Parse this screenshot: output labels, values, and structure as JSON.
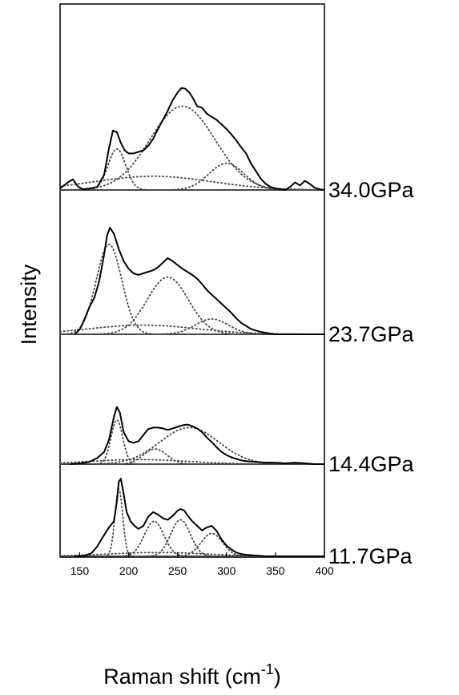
{
  "chart_data": {
    "type": "line",
    "style": "stacked Raman spectra (solid) with dotted Gaussian/Lorentzian fit components",
    "xlabel": "Raman shift (cm",
    "xlabel_sup": "-1",
    "xlabel_close": ")",
    "ylabel": "Intensity",
    "xlim": [
      130,
      400
    ],
    "x_ticks": [
      150,
      200,
      250,
      300,
      350,
      400
    ],
    "grid": false,
    "panels": [
      {
        "label": "34.0GPa",
        "spectrum": [
          [
            130,
            2
          ],
          [
            138,
            10
          ],
          [
            143,
            14
          ],
          [
            148,
            5
          ],
          [
            153,
            1
          ],
          [
            160,
            2
          ],
          [
            168,
            4
          ],
          [
            175,
            20
          ],
          [
            180,
            55
          ],
          [
            184,
            78
          ],
          [
            188,
            76
          ],
          [
            192,
            62
          ],
          [
            196,
            52
          ],
          [
            200,
            48
          ],
          [
            205,
            48
          ],
          [
            210,
            50
          ],
          [
            215,
            52
          ],
          [
            220,
            58
          ],
          [
            225,
            67
          ],
          [
            230,
            80
          ],
          [
            235,
            92
          ],
          [
            240,
            104
          ],
          [
            245,
            118
          ],
          [
            250,
            128
          ],
          [
            254,
            134
          ],
          [
            258,
            133
          ],
          [
            262,
            128
          ],
          [
            266,
            120
          ],
          [
            270,
            110
          ],
          [
            275,
            108
          ],
          [
            280,
            100
          ],
          [
            285,
            96
          ],
          [
            290,
            92
          ],
          [
            295,
            86
          ],
          [
            300,
            80
          ],
          [
            305,
            73
          ],
          [
            310,
            65
          ],
          [
            315,
            56
          ],
          [
            320,
            48
          ],
          [
            325,
            35
          ],
          [
            330,
            25
          ],
          [
            335,
            15
          ],
          [
            340,
            8
          ],
          [
            345,
            4
          ],
          [
            350,
            2
          ],
          [
            355,
            1
          ],
          [
            360,
            0
          ],
          [
            365,
            4
          ],
          [
            370,
            10
          ],
          [
            375,
            6
          ],
          [
            380,
            12
          ],
          [
            385,
            8
          ],
          [
            390,
            3
          ],
          [
            395,
            1
          ],
          [
            400,
            0
          ]
        ],
        "components": [
          {
            "center": 188,
            "height": 54,
            "width": 9
          },
          {
            "center": 255,
            "height": 110,
            "width": 33
          },
          {
            "center": 300,
            "height": 35,
            "width": 18
          },
          {
            "center": 225,
            "height": 18,
            "width": 60
          }
        ]
      },
      {
        "label": "23.7GPa",
        "spectrum": [
          [
            145,
            0
          ],
          [
            150,
            6
          ],
          [
            155,
            20
          ],
          [
            160,
            36
          ],
          [
            165,
            48
          ],
          [
            170,
            70
          ],
          [
            175,
            105
          ],
          [
            178,
            130
          ],
          [
            181,
            140
          ],
          [
            185,
            132
          ],
          [
            190,
            112
          ],
          [
            195,
            96
          ],
          [
            200,
            86
          ],
          [
            205,
            80
          ],
          [
            210,
            78
          ],
          [
            215,
            80
          ],
          [
            220,
            82
          ],
          [
            225,
            84
          ],
          [
            230,
            88
          ],
          [
            235,
            94
          ],
          [
            240,
            100
          ],
          [
            245,
            96
          ],
          [
            250,
            91
          ],
          [
            255,
            86
          ],
          [
            260,
            82
          ],
          [
            265,
            78
          ],
          [
            270,
            73
          ],
          [
            275,
            66
          ],
          [
            280,
            58
          ],
          [
            285,
            52
          ],
          [
            290,
            46
          ],
          [
            295,
            40
          ],
          [
            300,
            34
          ],
          [
            305,
            28
          ],
          [
            310,
            21
          ],
          [
            315,
            15
          ],
          [
            320,
            11
          ],
          [
            325,
            7
          ],
          [
            330,
            5
          ],
          [
            335,
            3
          ],
          [
            340,
            2
          ],
          [
            345,
            1
          ],
          [
            350,
            0
          ],
          [
            400,
            0
          ]
        ],
        "components": [
          {
            "center": 180,
            "height": 118,
            "width": 13
          },
          {
            "center": 240,
            "height": 75,
            "width": 21
          },
          {
            "center": 285,
            "height": 20,
            "width": 17
          },
          {
            "center": 215,
            "height": 12,
            "width": 55
          }
        ]
      },
      {
        "label": "14.4GPa",
        "spectrum": [
          [
            140,
            0
          ],
          [
            150,
            1
          ],
          [
            160,
            3
          ],
          [
            168,
            8
          ],
          [
            175,
            16
          ],
          [
            180,
            32
          ],
          [
            185,
            62
          ],
          [
            188,
            75
          ],
          [
            191,
            68
          ],
          [
            195,
            42
          ],
          [
            200,
            30
          ],
          [
            205,
            28
          ],
          [
            210,
            30
          ],
          [
            215,
            38
          ],
          [
            220,
            46
          ],
          [
            225,
            48
          ],
          [
            230,
            48
          ],
          [
            235,
            47
          ],
          [
            240,
            45
          ],
          [
            245,
            47
          ],
          [
            250,
            49
          ],
          [
            255,
            51
          ],
          [
            260,
            52
          ],
          [
            265,
            50
          ],
          [
            270,
            47
          ],
          [
            275,
            42
          ],
          [
            280,
            35
          ],
          [
            285,
            29
          ],
          [
            290,
            22
          ],
          [
            295,
            16
          ],
          [
            300,
            12
          ],
          [
            305,
            9
          ],
          [
            310,
            7
          ],
          [
            315,
            5
          ],
          [
            320,
            4
          ],
          [
            330,
            3
          ],
          [
            340,
            2
          ],
          [
            350,
            2
          ],
          [
            360,
            1
          ],
          [
            370,
            2
          ],
          [
            380,
            1
          ],
          [
            390,
            0
          ],
          [
            400,
            0
          ]
        ],
        "components": [
          {
            "center": 188,
            "height": 58,
            "width": 6
          },
          {
            "center": 262,
            "height": 48,
            "width": 30
          },
          {
            "center": 227,
            "height": 20,
            "width": 12
          },
          {
            "center": 210,
            "height": 6,
            "width": 50
          }
        ]
      },
      {
        "label": "11.7GPa",
        "spectrum": [
          [
            145,
            0
          ],
          [
            155,
            1
          ],
          [
            162,
            4
          ],
          [
            168,
            13
          ],
          [
            174,
            26
          ],
          [
            180,
            38
          ],
          [
            185,
            46
          ],
          [
            188,
            72
          ],
          [
            190,
            98
          ],
          [
            192,
            102
          ],
          [
            195,
            82
          ],
          [
            198,
            58
          ],
          [
            202,
            46
          ],
          [
            206,
            40
          ],
          [
            210,
            36
          ],
          [
            215,
            40
          ],
          [
            220,
            52
          ],
          [
            225,
            58
          ],
          [
            230,
            55
          ],
          [
            235,
            50
          ],
          [
            240,
            48
          ],
          [
            245,
            53
          ],
          [
            250,
            60
          ],
          [
            253,
            62
          ],
          [
            257,
            60
          ],
          [
            260,
            54
          ],
          [
            265,
            46
          ],
          [
            270,
            40
          ],
          [
            275,
            34
          ],
          [
            280,
            38
          ],
          [
            285,
            40
          ],
          [
            290,
            33
          ],
          [
            295,
            22
          ],
          [
            300,
            14
          ],
          [
            305,
            9
          ],
          [
            310,
            5
          ],
          [
            315,
            3
          ],
          [
            320,
            2
          ],
          [
            330,
            1
          ],
          [
            340,
            0
          ],
          [
            400,
            0
          ]
        ],
        "components": [
          {
            "center": 190,
            "height": 88,
            "width": 4
          },
          {
            "center": 226,
            "height": 46,
            "width": 10
          },
          {
            "center": 253,
            "height": 48,
            "width": 10
          },
          {
            "center": 285,
            "height": 30,
            "width": 11
          },
          {
            "center": 230,
            "height": 5,
            "width": 50
          }
        ]
      }
    ]
  }
}
